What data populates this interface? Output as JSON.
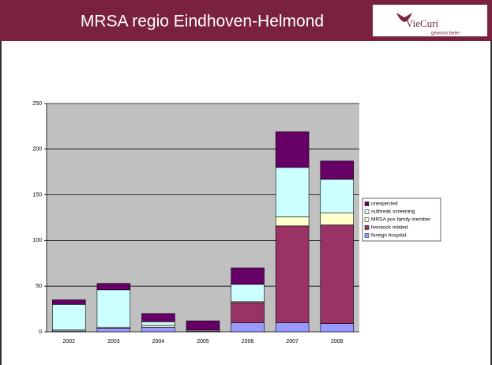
{
  "header": {
    "title": "MRSA regio Eindhoven-Helmond",
    "logo": "VieCuri",
    "logo_tagline": "gewoon beter"
  },
  "chart_data": {
    "type": "stacked_bar",
    "categories": [
      "2002",
      "2003",
      "2004",
      "2005",
      "2006",
      "2007",
      "2008"
    ],
    "series": [
      {
        "name": "foreign hospital",
        "color": "#9999ff",
        "values": [
          1,
          4,
          5,
          0,
          10,
          10,
          9
        ]
      },
      {
        "name": "livestock related",
        "color": "#993366",
        "values": [
          0,
          0,
          0,
          1,
          22,
          106,
          108
        ]
      },
      {
        "name": "MRSA pos family member",
        "color": "#ffffcc",
        "values": [
          1,
          1,
          2,
          0,
          1,
          10,
          13
        ]
      },
      {
        "name": "outbreak screening",
        "color": "#ccffff",
        "values": [
          28,
          41,
          4,
          1,
          19,
          54,
          37
        ]
      },
      {
        "name": "unexpected",
        "color": "#660066",
        "values": [
          5,
          7,
          9,
          10,
          18,
          39,
          20
        ]
      }
    ],
    "ylim": [
      0,
      250
    ],
    "yticks": [
      0,
      50,
      100,
      150,
      200,
      250
    ],
    "grid": true,
    "legend": "right"
  }
}
